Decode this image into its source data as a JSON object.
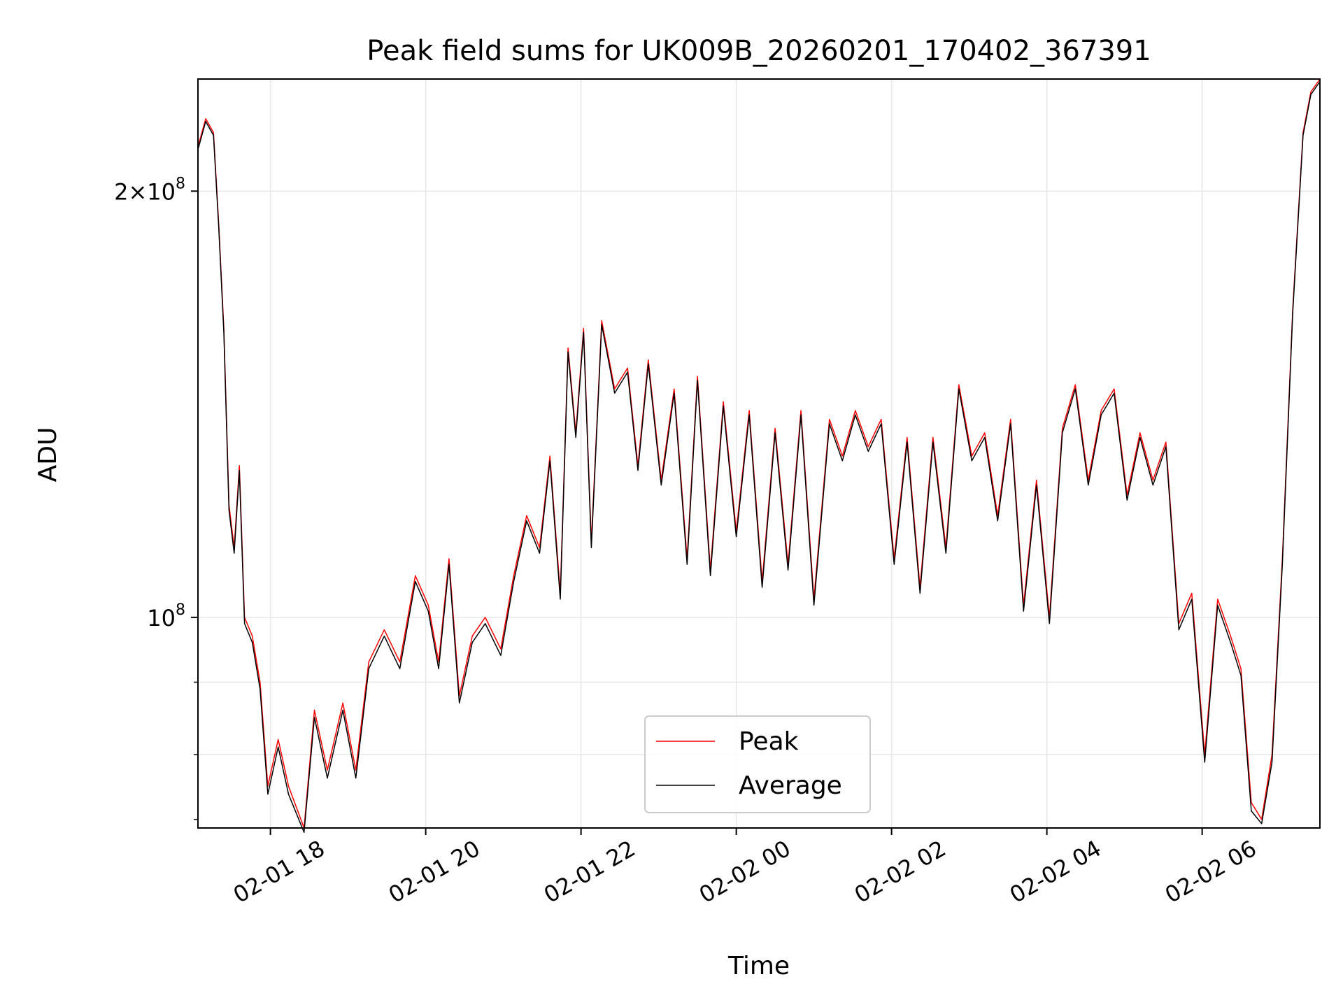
{
  "chart_data": {
    "type": "line",
    "title": "Peak field sums for UK009B_20260201_170402_367391",
    "xlabel": "Time",
    "ylabel": "ADU",
    "yscale": "log",
    "xlim": [
      "2026-02-01T17:04",
      "2026-02-02T07:31"
    ],
    "ylim": [
      71000000,
      240000000
    ],
    "xticks": [
      "02-01 18",
      "02-01 20",
      "02-01 22",
      "02-02 00",
      "02-02 02",
      "02-02 04",
      "02-02 06"
    ],
    "yticks_major": [
      "10^8",
      "2×10^8"
    ],
    "grid": true,
    "legend_position": "lower center",
    "series": [
      {
        "name": "Peak",
        "color": "#ff0000",
        "points": [
          [
            "2026-02-01T17:04",
            215000000
          ],
          [
            "2026-02-01T17:10",
            225000000
          ],
          [
            "2026-02-01T17:16",
            220000000
          ],
          [
            "2026-02-01T17:20",
            190000000
          ],
          [
            "2026-02-01T17:24",
            160000000
          ],
          [
            "2026-02-01T17:28",
            120000000
          ],
          [
            "2026-02-01T17:32",
            112000000
          ],
          [
            "2026-02-01T17:36",
            128000000
          ],
          [
            "2026-02-01T17:40",
            100000000
          ],
          [
            "2026-02-01T17:46",
            97000000
          ],
          [
            "2026-02-01T17:52",
            90000000
          ],
          [
            "2026-02-01T17:58",
            76000000
          ],
          [
            "2026-02-01T18:06",
            82000000
          ],
          [
            "2026-02-01T18:14",
            76000000
          ],
          [
            "2026-02-01T18:26",
            71000000
          ],
          [
            "2026-02-01T18:34",
            86000000
          ],
          [
            "2026-02-01T18:44",
            78000000
          ],
          [
            "2026-02-01T18:56",
            87000000
          ],
          [
            "2026-02-01T19:06",
            78000000
          ],
          [
            "2026-02-01T19:16",
            93000000
          ],
          [
            "2026-02-01T19:28",
            98000000
          ],
          [
            "2026-02-01T19:40",
            93000000
          ],
          [
            "2026-02-01T19:52",
            107000000
          ],
          [
            "2026-02-01T20:02",
            102000000
          ],
          [
            "2026-02-01T20:10",
            93000000
          ],
          [
            "2026-02-01T20:18",
            110000000
          ],
          [
            "2026-02-01T20:26",
            88000000
          ],
          [
            "2026-02-01T20:36",
            97000000
          ],
          [
            "2026-02-01T20:46",
            100000000
          ],
          [
            "2026-02-01T20:58",
            95000000
          ],
          [
            "2026-02-01T21:08",
            107000000
          ],
          [
            "2026-02-01T21:18",
            118000000
          ],
          [
            "2026-02-01T21:28",
            112000000
          ],
          [
            "2026-02-01T21:36",
            130000000
          ],
          [
            "2026-02-01T21:44",
            104000000
          ],
          [
            "2026-02-01T21:50",
            155000000
          ],
          [
            "2026-02-01T21:56",
            135000000
          ],
          [
            "2026-02-01T22:02",
            160000000
          ],
          [
            "2026-02-01T22:08",
            113000000
          ],
          [
            "2026-02-01T22:16",
            162000000
          ],
          [
            "2026-02-01T22:26",
            145000000
          ],
          [
            "2026-02-01T22:36",
            150000000
          ],
          [
            "2026-02-01T22:44",
            128000000
          ],
          [
            "2026-02-01T22:52",
            152000000
          ],
          [
            "2026-02-01T23:02",
            125000000
          ],
          [
            "2026-02-01T23:12",
            145000000
          ],
          [
            "2026-02-01T23:22",
            110000000
          ],
          [
            "2026-02-01T23:30",
            148000000
          ],
          [
            "2026-02-01T23:40",
            108000000
          ],
          [
            "2026-02-01T23:50",
            142000000
          ],
          [
            "2026-02-02T00:00",
            115000000
          ],
          [
            "2026-02-02T00:10",
            140000000
          ],
          [
            "2026-02-02T00:20",
            106000000
          ],
          [
            "2026-02-02T00:30",
            136000000
          ],
          [
            "2026-02-02T00:40",
            109000000
          ],
          [
            "2026-02-02T00:50",
            140000000
          ],
          [
            "2026-02-02T01:00",
            103000000
          ],
          [
            "2026-02-02T01:12",
            138000000
          ],
          [
            "2026-02-02T01:22",
            130000000
          ],
          [
            "2026-02-02T01:32",
            140000000
          ],
          [
            "2026-02-02T01:42",
            132000000
          ],
          [
            "2026-02-02T01:52",
            138000000
          ],
          [
            "2026-02-02T02:02",
            110000000
          ],
          [
            "2026-02-02T02:12",
            134000000
          ],
          [
            "2026-02-02T02:22",
            105000000
          ],
          [
            "2026-02-02T02:32",
            134000000
          ],
          [
            "2026-02-02T02:42",
            112000000
          ],
          [
            "2026-02-02T02:52",
            146000000
          ],
          [
            "2026-02-02T03:02",
            130000000
          ],
          [
            "2026-02-02T03:12",
            135000000
          ],
          [
            "2026-02-02T03:22",
            118000000
          ],
          [
            "2026-02-02T03:32",
            138000000
          ],
          [
            "2026-02-02T03:42",
            102000000
          ],
          [
            "2026-02-02T03:52",
            125000000
          ],
          [
            "2026-02-02T04:02",
            100000000
          ],
          [
            "2026-02-02T04:12",
            136000000
          ],
          [
            "2026-02-02T04:22",
            146000000
          ],
          [
            "2026-02-02T04:32",
            125000000
          ],
          [
            "2026-02-02T04:42",
            140000000
          ],
          [
            "2026-02-02T04:52",
            145000000
          ],
          [
            "2026-02-02T05:02",
            122000000
          ],
          [
            "2026-02-02T05:12",
            135000000
          ],
          [
            "2026-02-02T05:22",
            125000000
          ],
          [
            "2026-02-02T05:32",
            133000000
          ],
          [
            "2026-02-02T05:42",
            99000000
          ],
          [
            "2026-02-02T05:52",
            104000000
          ],
          [
            "2026-02-02T06:02",
            80000000
          ],
          [
            "2026-02-02T06:12",
            103000000
          ],
          [
            "2026-02-02T06:22",
            97000000
          ],
          [
            "2026-02-02T06:30",
            92000000
          ],
          [
            "2026-02-02T06:38",
            74000000
          ],
          [
            "2026-02-02T06:46",
            72000000
          ],
          [
            "2026-02-02T06:54",
            80000000
          ],
          [
            "2026-02-02T07:02",
            110000000
          ],
          [
            "2026-02-02T07:10",
            165000000
          ],
          [
            "2026-02-02T07:18",
            220000000
          ],
          [
            "2026-02-02T07:24",
            235000000
          ],
          [
            "2026-02-02T07:31",
            240000000
          ]
        ]
      },
      {
        "name": "Average",
        "color": "#000000",
        "points": [
          [
            "2026-02-01T17:04",
            214000000
          ],
          [
            "2026-02-01T17:10",
            224000000
          ],
          [
            "2026-02-01T17:16",
            219000000
          ],
          [
            "2026-02-01T17:20",
            189000000
          ],
          [
            "2026-02-01T17:24",
            159000000
          ],
          [
            "2026-02-01T17:28",
            119000000
          ],
          [
            "2026-02-01T17:32",
            111000000
          ],
          [
            "2026-02-01T17:36",
            127000000
          ],
          [
            "2026-02-01T17:40",
            99000000
          ],
          [
            "2026-02-01T17:46",
            96000000
          ],
          [
            "2026-02-01T17:52",
            89000000
          ],
          [
            "2026-02-01T17:58",
            75000000
          ],
          [
            "2026-02-01T18:06",
            81000000
          ],
          [
            "2026-02-01T18:14",
            75000000
          ],
          [
            "2026-02-01T18:26",
            70500000
          ],
          [
            "2026-02-01T18:34",
            85000000
          ],
          [
            "2026-02-01T18:44",
            77000000
          ],
          [
            "2026-02-01T18:56",
            86000000
          ],
          [
            "2026-02-01T19:06",
            77000000
          ],
          [
            "2026-02-01T19:16",
            92000000
          ],
          [
            "2026-02-01T19:28",
            97000000
          ],
          [
            "2026-02-01T19:40",
            92000000
          ],
          [
            "2026-02-01T19:52",
            106000000
          ],
          [
            "2026-02-01T20:02",
            101000000
          ],
          [
            "2026-02-01T20:10",
            92000000
          ],
          [
            "2026-02-01T20:18",
            109000000
          ],
          [
            "2026-02-01T20:26",
            87000000
          ],
          [
            "2026-02-01T20:36",
            96000000
          ],
          [
            "2026-02-01T20:46",
            99000000
          ],
          [
            "2026-02-01T20:58",
            94000000
          ],
          [
            "2026-02-01T21:08",
            106000000
          ],
          [
            "2026-02-01T21:18",
            117000000
          ],
          [
            "2026-02-01T21:28",
            111000000
          ],
          [
            "2026-02-01T21:36",
            129000000
          ],
          [
            "2026-02-01T21:44",
            103000000
          ],
          [
            "2026-02-01T21:50",
            154000000
          ],
          [
            "2026-02-01T21:56",
            134000000
          ],
          [
            "2026-02-01T22:02",
            159000000
          ],
          [
            "2026-02-01T22:08",
            112000000
          ],
          [
            "2026-02-01T22:16",
            161000000
          ],
          [
            "2026-02-01T22:26",
            144000000
          ],
          [
            "2026-02-01T22:36",
            149000000
          ],
          [
            "2026-02-01T22:44",
            127000000
          ],
          [
            "2026-02-01T22:52",
            151000000
          ],
          [
            "2026-02-01T23:02",
            124000000
          ],
          [
            "2026-02-01T23:12",
            144000000
          ],
          [
            "2026-02-01T23:22",
            109000000
          ],
          [
            "2026-02-01T23:30",
            147000000
          ],
          [
            "2026-02-01T23:40",
            107000000
          ],
          [
            "2026-02-01T23:50",
            141000000
          ],
          [
            "2026-02-02T00:00",
            114000000
          ],
          [
            "2026-02-02T00:10",
            139000000
          ],
          [
            "2026-02-02T00:20",
            105000000
          ],
          [
            "2026-02-02T00:30",
            135000000
          ],
          [
            "2026-02-02T00:40",
            108000000
          ],
          [
            "2026-02-02T00:50",
            139000000
          ],
          [
            "2026-02-02T01:00",
            102000000
          ],
          [
            "2026-02-02T01:12",
            137000000
          ],
          [
            "2026-02-02T01:22",
            129000000
          ],
          [
            "2026-02-02T01:32",
            139000000
          ],
          [
            "2026-02-02T01:42",
            131000000
          ],
          [
            "2026-02-02T01:52",
            137000000
          ],
          [
            "2026-02-02T02:02",
            109000000
          ],
          [
            "2026-02-02T02:12",
            133000000
          ],
          [
            "2026-02-02T02:22",
            104000000
          ],
          [
            "2026-02-02T02:32",
            133000000
          ],
          [
            "2026-02-02T02:42",
            111000000
          ],
          [
            "2026-02-02T02:52",
            145000000
          ],
          [
            "2026-02-02T03:02",
            129000000
          ],
          [
            "2026-02-02T03:12",
            134000000
          ],
          [
            "2026-02-02T03:22",
            117000000
          ],
          [
            "2026-02-02T03:32",
            137000000
          ],
          [
            "2026-02-02T03:42",
            101000000
          ],
          [
            "2026-02-02T03:52",
            124000000
          ],
          [
            "2026-02-02T04:02",
            99000000
          ],
          [
            "2026-02-02T04:12",
            135000000
          ],
          [
            "2026-02-02T04:22",
            145000000
          ],
          [
            "2026-02-02T04:32",
            124000000
          ],
          [
            "2026-02-02T04:42",
            139000000
          ],
          [
            "2026-02-02T04:52",
            144000000
          ],
          [
            "2026-02-02T05:02",
            121000000
          ],
          [
            "2026-02-02T05:12",
            134000000
          ],
          [
            "2026-02-02T05:22",
            124000000
          ],
          [
            "2026-02-02T05:32",
            132000000
          ],
          [
            "2026-02-02T05:42",
            98000000
          ],
          [
            "2026-02-02T05:52",
            103000000
          ],
          [
            "2026-02-02T06:02",
            79000000
          ],
          [
            "2026-02-02T06:12",
            102000000
          ],
          [
            "2026-02-02T06:22",
            96000000
          ],
          [
            "2026-02-02T06:30",
            91000000
          ],
          [
            "2026-02-02T06:38",
            73000000
          ],
          [
            "2026-02-02T06:46",
            71500000
          ],
          [
            "2026-02-02T06:54",
            79000000
          ],
          [
            "2026-02-02T07:02",
            109000000
          ],
          [
            "2026-02-02T07:10",
            164000000
          ],
          [
            "2026-02-02T07:18",
            219000000
          ],
          [
            "2026-02-02T07:24",
            234000000
          ],
          [
            "2026-02-02T07:31",
            239000000
          ]
        ]
      }
    ]
  }
}
